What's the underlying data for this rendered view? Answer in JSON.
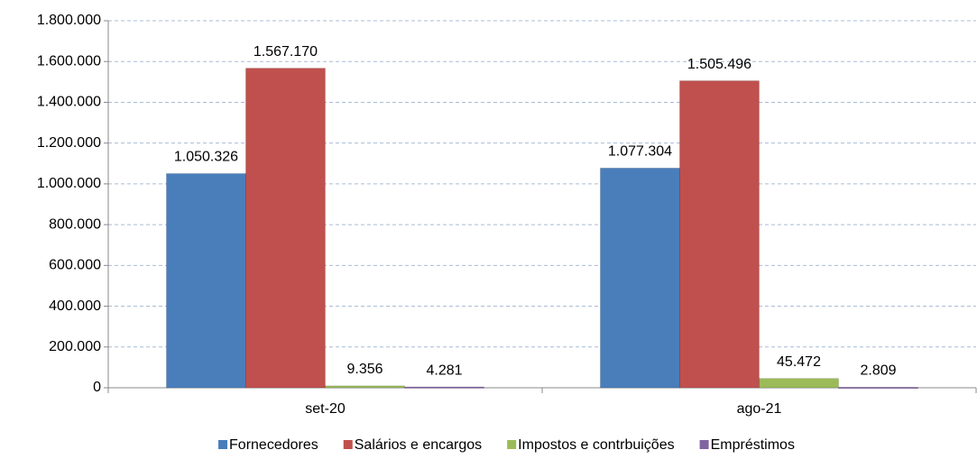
{
  "chart_data": {
    "type": "bar",
    "categories": [
      "set-20",
      "ago-21"
    ],
    "series": [
      {
        "name": "Fornecedores",
        "color": "#4a7ebb",
        "values": [
          1050326,
          1077304
        ],
        "value_labels": [
          "1.050.326",
          "1.077.304"
        ]
      },
      {
        "name": "Salários e encargos",
        "color": "#c0504d",
        "values": [
          1567170,
          1505496
        ],
        "value_labels": [
          "1.567.170",
          "1.505.496"
        ]
      },
      {
        "name": "Impostos e contrbuições",
        "color": "#9bbb59",
        "values": [
          9356,
          45472
        ],
        "value_labels": [
          "9.356",
          "45.472"
        ]
      },
      {
        "name": "Empréstimos",
        "color": "#8064a2",
        "values": [
          4281,
          2809
        ],
        "value_labels": [
          "4.281",
          "2.809"
        ]
      }
    ],
    "ylim": [
      0,
      1800000
    ],
    "yticks": [
      0,
      {
        "value": 200000,
        "label": "200.000"
      },
      {
        "value": 400000,
        "label": "400.000"
      },
      {
        "value": 600000,
        "label": "600.000"
      },
      {
        "value": 800000,
        "label": "800.000"
      },
      {
        "value": 1000000,
        "label": "1.000.000"
      },
      {
        "value": 1200000,
        "label": "1.200.000"
      },
      {
        "value": 1400000,
        "label": "1.400.000"
      },
      {
        "value": 1600000,
        "label": "1.600.000"
      },
      {
        "value": 1800000,
        "label": "1.800.000"
      }
    ],
    "grid": true,
    "legend": "bottom"
  }
}
